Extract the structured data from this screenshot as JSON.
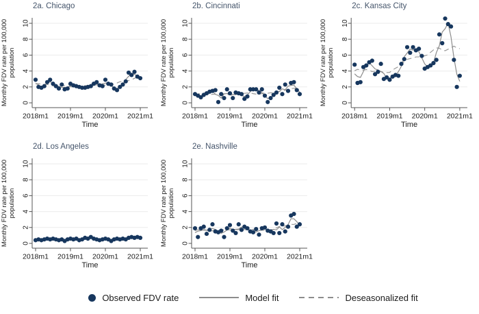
{
  "figure": {
    "axis": {
      "ylabel_line1": "Monthly FDV rate per 100,000",
      "ylabel_line2": "population",
      "xlabel": "Time",
      "yticks": [
        0,
        2,
        4,
        6,
        8,
        10
      ],
      "ylim": [
        0,
        10
      ],
      "xtick_labels": [
        "2018m1",
        "2019m1",
        "2020m1",
        "2021m1"
      ],
      "xtick_month_index": [
        0,
        12,
        24,
        36
      ],
      "grid": "horizontal-light"
    },
    "legend": {
      "observed_label": "Observed FDV rate",
      "model_label": "Model fit",
      "deseason_label": "Deseasonalized fit",
      "position": "bottom-center"
    },
    "colors": {
      "dot": "#17375E",
      "fit_line": "#8c8c8c",
      "deseason_line": "#999999",
      "title": "#44546A",
      "grid_line": "#ebebeb",
      "axis_line": "#555555",
      "tick_text": "#1a1a1a"
    }
  },
  "chart_data": [
    {
      "type": "scatter",
      "title": "2a. Chicago",
      "xlabel": "Time",
      "ylabel": "Monthly FDV rate per 100,000 population",
      "ylim": [
        0,
        10
      ],
      "x_start": "2018m1",
      "x_end": "2021m1",
      "xticks": [
        "2018m1",
        "2019m1",
        "2020m1",
        "2021m1"
      ],
      "series": [
        {
          "name": "Observed FDV rate",
          "style": "points",
          "values": [
            2.9,
            2.0,
            1.9,
            2.1,
            2.6,
            2.9,
            2.4,
            2.1,
            1.8,
            2.3,
            1.7,
            1.8,
            2.4,
            2.2,
            2.1,
            2.0,
            1.9,
            1.9,
            2.0,
            2.1,
            2.4,
            2.6,
            2.2,
            2.1,
            2.9,
            2.4,
            2.3,
            1.8,
            1.6,
            2.0,
            2.3,
            2.7,
            3.8,
            3.5,
            3.9,
            3.3,
            3.1
          ]
        },
        {
          "name": "Model fit",
          "style": "solid-line",
          "smoothing_window": 3
        },
        {
          "name": "Deseasonalized fit",
          "style": "dashed-line",
          "smoothing_window": 11
        }
      ]
    },
    {
      "type": "scatter",
      "title": "2b. Cincinnati",
      "xlabel": "Time",
      "ylabel": "Monthly FDV rate per 100,000 population",
      "ylim": [
        0,
        10
      ],
      "x_start": "2018m1",
      "x_end": "2021m1",
      "xticks": [
        "2018m1",
        "2019m1",
        "2020m1",
        "2021m1"
      ],
      "series": [
        {
          "name": "Observed FDV rate",
          "style": "points",
          "values": [
            1.1,
            0.9,
            0.7,
            1.0,
            1.2,
            1.4,
            1.5,
            1.6,
            0.1,
            1.1,
            0.6,
            1.7,
            1.2,
            0.6,
            1.3,
            1.2,
            1.1,
            0.5,
            0.8,
            1.7,
            1.7,
            1.7,
            1.3,
            1.7,
            0.9,
            0.1,
            0.6,
            1.0,
            1.3,
            1.9,
            1.1,
            2.3,
            1.5,
            2.5,
            2.6,
            1.6,
            1.1
          ]
        },
        {
          "name": "Model fit",
          "style": "solid-line",
          "smoothing_window": 3
        },
        {
          "name": "Deseasonalized fit",
          "style": "dashed-line",
          "smoothing_window": 11
        }
      ]
    },
    {
      "type": "scatter",
      "title": "2c. Kansas City",
      "xlabel": "Time",
      "ylabel": "Monthly FDV rate per 100,000 population",
      "ylim": [
        0,
        10
      ],
      "x_start": "2018m1",
      "x_end": "2021m1",
      "xticks": [
        "2018m1",
        "2019m1",
        "2020m1",
        "2021m1"
      ],
      "series": [
        {
          "name": "Observed FDV rate",
          "style": "points",
          "values": [
            4.8,
            2.5,
            2.6,
            4.5,
            4.7,
            5.1,
            5.3,
            3.6,
            3.9,
            4.9,
            3.0,
            3.2,
            2.9,
            3.3,
            3.5,
            3.4,
            4.9,
            5.5,
            7.0,
            6.3,
            7.0,
            6.6,
            6.8,
            5.9,
            4.3,
            4.5,
            4.7,
            5.0,
            5.4,
            8.6,
            7.5,
            10.6,
            9.9,
            9.6,
            5.4,
            2.0,
            3.4
          ]
        },
        {
          "name": "Model fit",
          "style": "solid-line",
          "smoothing_window": 3
        },
        {
          "name": "Deseasonalized fit",
          "style": "dashed-line",
          "smoothing_window": 11
        }
      ]
    },
    {
      "type": "scatter",
      "title": "2d. Los Angeles",
      "xlabel": "Time",
      "ylabel": "Monthly FDV rate per 100,000 population",
      "ylim": [
        0,
        10
      ],
      "x_start": "2018m1",
      "x_end": "2021m1",
      "xticks": [
        "2018m1",
        "2019m1",
        "2020m1",
        "2021m1"
      ],
      "series": [
        {
          "name": "Observed FDV rate",
          "style": "points",
          "values": [
            0.4,
            0.5,
            0.4,
            0.5,
            0.6,
            0.5,
            0.6,
            0.5,
            0.4,
            0.5,
            0.3,
            0.5,
            0.6,
            0.5,
            0.6,
            0.4,
            0.5,
            0.7,
            0.6,
            0.8,
            0.6,
            0.5,
            0.4,
            0.5,
            0.6,
            0.5,
            0.3,
            0.5,
            0.6,
            0.5,
            0.6,
            0.5,
            0.7,
            0.8,
            0.7,
            0.8,
            0.7
          ]
        },
        {
          "name": "Model fit",
          "style": "solid-line",
          "smoothing_window": 3
        },
        {
          "name": "Deseasonalized fit",
          "style": "dashed-line",
          "smoothing_window": 11
        }
      ]
    },
    {
      "type": "scatter",
      "title": "2e. Nashville",
      "xlabel": "Time",
      "ylabel": "Monthly FDV rate per 100,000 population",
      "ylim": [
        0,
        10
      ],
      "x_start": "2018m1",
      "x_end": "2021m1",
      "xticks": [
        "2018m1",
        "2019m1",
        "2020m1",
        "2021m1"
      ],
      "series": [
        {
          "name": "Observed FDV rate",
          "style": "points",
          "values": [
            1.9,
            0.8,
            1.9,
            2.1,
            1.2,
            1.7,
            2.4,
            1.5,
            1.4,
            1.6,
            0.8,
            1.9,
            2.3,
            1.6,
            1.3,
            2.4,
            1.7,
            2.1,
            1.9,
            1.5,
            1.4,
            1.8,
            1.1,
            1.9,
            2.0,
            1.6,
            1.5,
            1.3,
            2.5,
            1.3,
            2.4,
            1.5,
            2.1,
            3.5,
            3.7,
            2.1,
            2.4
          ]
        },
        {
          "name": "Model fit",
          "style": "solid-line",
          "smoothing_window": 3
        },
        {
          "name": "Deseasonalized fit",
          "style": "dashed-line",
          "smoothing_window": 11
        }
      ]
    }
  ]
}
